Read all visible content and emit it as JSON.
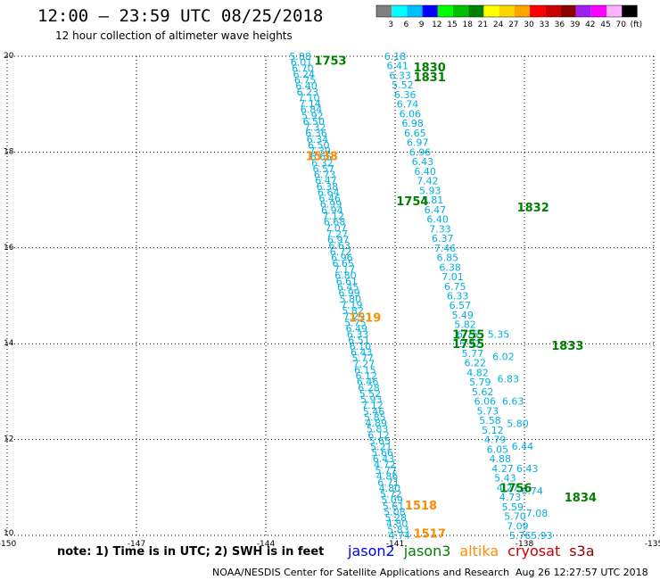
{
  "header": {
    "title": "12:00 – 23:59 UTC 08/25/2018",
    "subtitle": "12 hour collection of altimeter wave heights"
  },
  "legend": {
    "labels": [
      "3",
      "6",
      "9",
      "12",
      "15",
      "18",
      "21",
      "24",
      "27",
      "30",
      "33",
      "36",
      "39",
      "42",
      "45",
      "70",
      "(ft)"
    ],
    "colors": [
      "#808080",
      "#00ffff",
      "#00bfff",
      "#0000ff",
      "#00ff00",
      "#00c000",
      "#008000",
      "#ffff00",
      "#ffd700",
      "#ffa500",
      "#ff0000",
      "#c80000",
      "#8b0000",
      "#a020f0",
      "#ff00ff",
      "#ffb0ff",
      "#000000"
    ]
  },
  "footer": {
    "note": "note:  1) Time is in UTC;  2) SWH is in feet",
    "satellites": [
      {
        "name": "jason2",
        "color": "#0000ff"
      },
      {
        "name": "jason3",
        "color": "#008000"
      },
      {
        "name": "altika",
        "color": "#ff8c00"
      },
      {
        "name": "cryosat",
        "color": "#c80000"
      },
      {
        "name": "s3a",
        "color": "#8b0000"
      }
    ],
    "credit": "NOAA/NESDIS Center for Satellite Applications and Research",
    "timestamp": "Aug 26 12:27:57 UTC 2018"
  },
  "chart_data": {
    "type": "scatter",
    "title": "12:00 – 23:59 UTC 08/25/2018",
    "subtitle": "12 hour collection of altimeter wave heights",
    "xlim": [
      -150,
      -135
    ],
    "ylim": [
      10,
      20
    ],
    "x_ticks": [
      "-150",
      "-147",
      "-144",
      "-141",
      "-138",
      "-135"
    ],
    "x_tick_values": [
      -150,
      -147,
      -144,
      -141,
      -138,
      -135
    ],
    "y_ticks": [
      "10",
      "12",
      "14",
      "16",
      "18",
      "20"
    ],
    "y_tick_values": [
      10,
      12,
      14,
      16,
      18,
      20
    ],
    "grid": true,
    "value_color": "#00b0e0",
    "time_color_jason3": "#008000",
    "time_color_altika": "#ff8c00",
    "tracks": [
      {
        "x_start": -143.2,
        "y_start": 20.0,
        "x_end": -140.9,
        "y_end": 10.0,
        "values": [
          "5.88",
          "6.01",
          "6.70",
          "6.24",
          "6.75",
          "6.40",
          "6.23",
          "7.10",
          "7.14",
          "6.84",
          "5.92",
          "6.50",
          "7.32",
          "6.36",
          "6.34",
          "6.50",
          "7.39",
          "6.65",
          "6.32",
          "6.57",
          "6.73",
          "6.47",
          "6.38",
          "6.64",
          "6.46",
          "6.99",
          "6.94",
          "7.12",
          "6.68",
          "7.07",
          "7.27",
          "6.97",
          "6.63",
          "6.72",
          "6.96",
          "6.65",
          "7.17",
          "6.80",
          "6.61",
          "6.45",
          "6.99",
          "5.80",
          "7.19",
          "5.82",
          "7.29",
          "5.75",
          "6.49",
          "6.33",
          "6.51",
          "6.10",
          "6.43",
          "5.77",
          "7.27",
          "6.15",
          "6.12",
          "6.46",
          "6.28",
          "5.52",
          "5.93",
          "7.12",
          "5.46",
          "5.85",
          "4.89",
          "5.83",
          "6.12",
          "5.65",
          "5.21",
          "5.66",
          "6.43",
          "4.72",
          "5.77",
          "4.86",
          "6.71",
          "4.80",
          "5.72",
          "5.09",
          "5.61",
          "5.08",
          "5.28",
          "4.80",
          "5.83",
          "4.74"
        ]
      },
      {
        "x_start": -141.0,
        "y_start": 20.0,
        "x_end": -138.1,
        "y_end": 10.0,
        "values": [
          "6.18",
          "6.41",
          "6.33",
          "5.52",
          "6.36",
          "6.74",
          "6.06",
          "6.98",
          "6.65",
          "6.97",
          "6.96",
          "6.43",
          "6.40",
          "7.42",
          "5.93",
          "5.81",
          "6.47",
          "6.40",
          "7.33",
          "6.37",
          "7.46",
          "6.85",
          "6.38",
          "7.01",
          "6.75",
          "6.33",
          "6.57",
          "5.49",
          "5.82",
          "6.75",
          "5.92",
          "5.77",
          "6.22",
          "4.82",
          "5.79",
          "5.62",
          "6.06",
          "5.73",
          "5.58",
          "5.12",
          "4.79",
          "6.05",
          "4.88",
          "4.27",
          "5.43",
          "4.27",
          "4.73",
          "5.59",
          "5.70",
          "7.09",
          "5.76"
        ]
      },
      {
        "x_start": -138.6,
        "y_start": 14.2,
        "x_end": -137.6,
        "y_end": 10.0,
        "values": [
          "5.35",
          "6.02",
          "6.83",
          "6.63",
          "5.80",
          "6.44",
          "6.43",
          "6.74",
          "7.08",
          "5.93"
        ]
      }
    ],
    "time_labels": [
      {
        "text": "1753",
        "lon": -142.5,
        "lat": 19.92,
        "sat": "jason3"
      },
      {
        "text": "1830",
        "lon": -140.2,
        "lat": 19.78,
        "sat": "jason3"
      },
      {
        "text": "1831",
        "lon": -140.2,
        "lat": 19.57,
        "sat": "jason3"
      },
      {
        "text": "1538",
        "lon": -142.7,
        "lat": 17.92,
        "sat": "altika"
      },
      {
        "text": "1754",
        "lon": -140.6,
        "lat": 16.98,
        "sat": "jason3"
      },
      {
        "text": "1832",
        "lon": -137.8,
        "lat": 16.85,
        "sat": "jason3"
      },
      {
        "text": "1519",
        "lon": -141.7,
        "lat": 14.55,
        "sat": "altika"
      },
      {
        "text": "1755",
        "lon": -139.3,
        "lat": 14.2,
        "sat": "jason3"
      },
      {
        "text": "1755",
        "lon": -139.3,
        "lat": 14.0,
        "sat": "jason3"
      },
      {
        "text": "1833",
        "lon": -137.0,
        "lat": 13.97,
        "sat": "jason3"
      },
      {
        "text": "1756",
        "lon": -138.2,
        "lat": 11.0,
        "sat": "jason3"
      },
      {
        "text": "1834",
        "lon": -136.7,
        "lat": 10.8,
        "sat": "jason3"
      },
      {
        "text": "1518",
        "lon": -140.4,
        "lat": 10.63,
        "sat": "altika"
      },
      {
        "text": "1517",
        "lon": -140.2,
        "lat": 10.05,
        "sat": "altika"
      }
    ]
  }
}
